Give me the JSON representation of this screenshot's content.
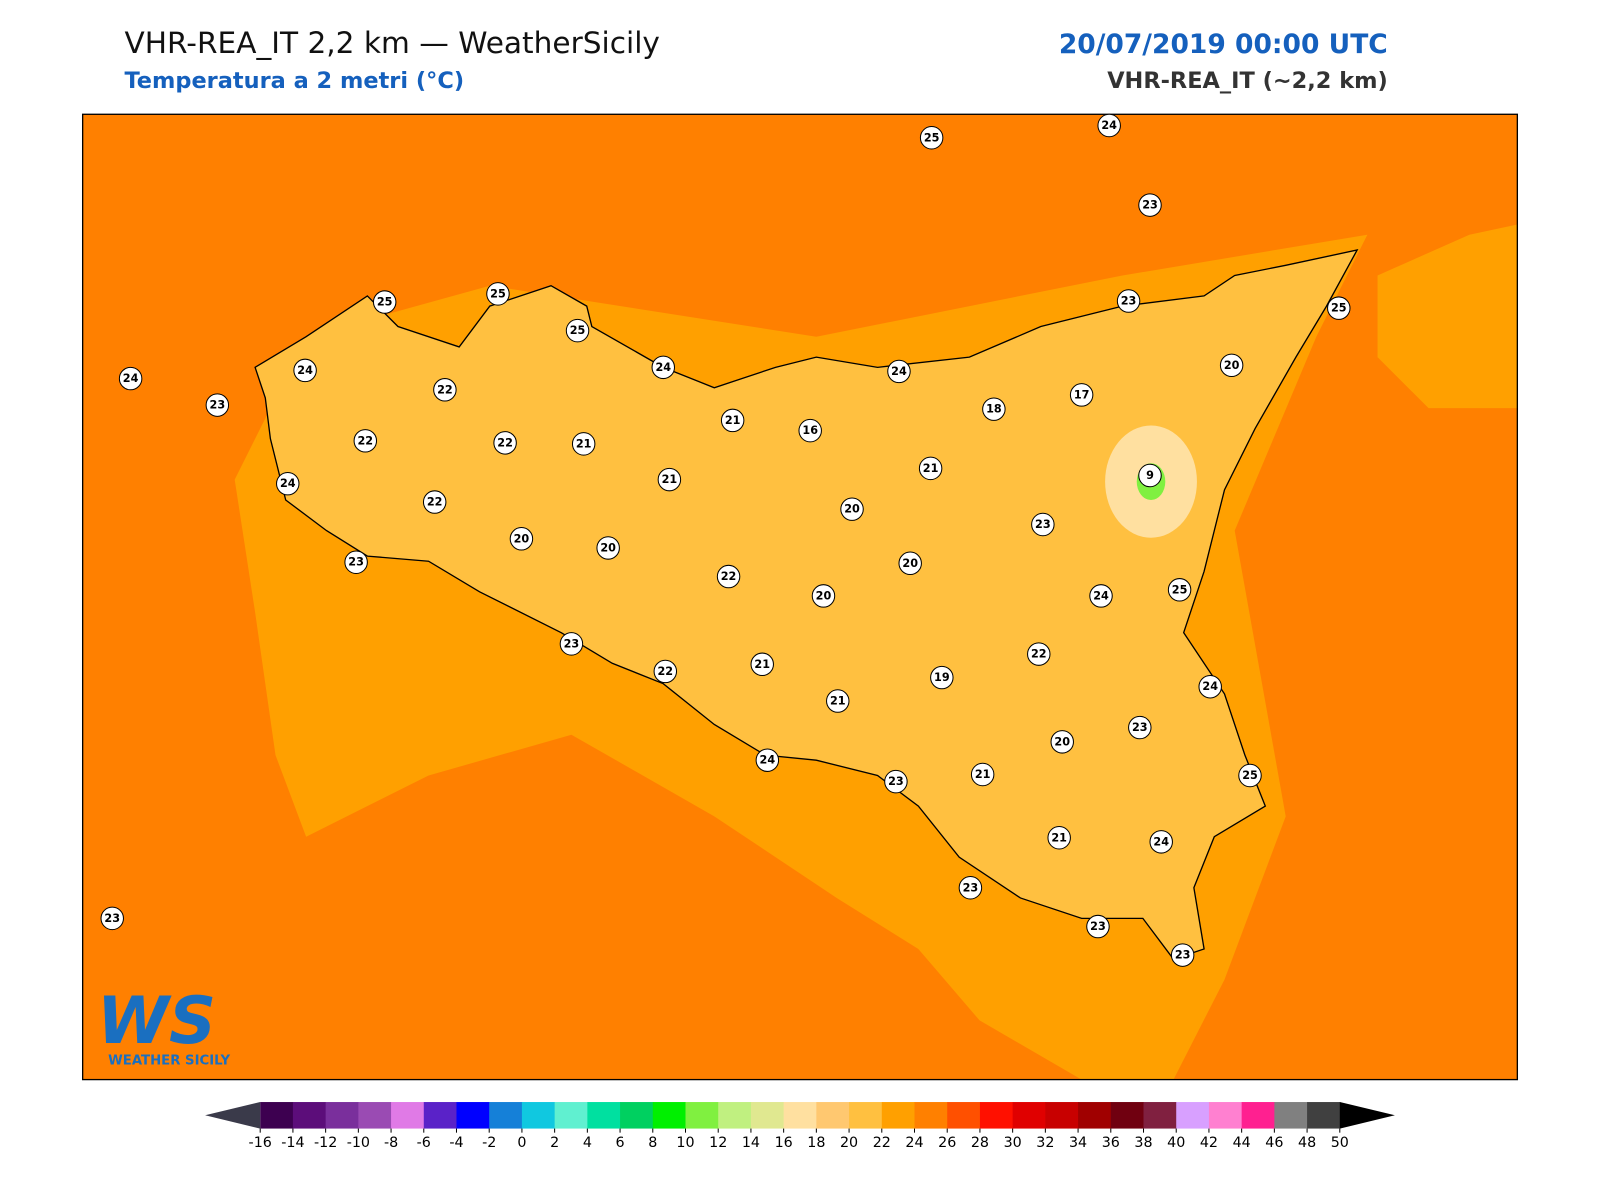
{
  "header": {
    "title": "VHR-REA_IT 2,2 km — WeatherSicily",
    "subtitle": "Temperatura a 2 metri (°C)",
    "date": "20/07/2019 00:00 UTC",
    "model": "VHR-REA_IT (~2,2 km)"
  },
  "logo": {
    "mark": "WS",
    "text": "WEATHER SICILY"
  },
  "stations": [
    25,
    24,
    23,
    25,
    25,
    25,
    23,
    25,
    24,
    23,
    24,
    22,
    24,
    24,
    20,
    17,
    18,
    22,
    22,
    21,
    21,
    16,
    24,
    22,
    21,
    21,
    9,
    20,
    20,
    20,
    23,
    23,
    22,
    20,
    20,
    24,
    25,
    23,
    22,
    21,
    19,
    22,
    24,
    21,
    23,
    20,
    24,
    23,
    21,
    25,
    21,
    24,
    23,
    23,
    23,
    23
  ],
  "colorbar": {
    "ticks": [
      -16,
      -14,
      -12,
      -10,
      -8,
      -6,
      -4,
      -2,
      0,
      2,
      4,
      6,
      8,
      10,
      12,
      14,
      16,
      18,
      20,
      22,
      24,
      26,
      28,
      30,
      32,
      34,
      36,
      38,
      40,
      42,
      44,
      46,
      48,
      50
    ],
    "colors": [
      "#3d0050",
      "#5c0d7a",
      "#7a2f9c",
      "#9a4bb3",
      "#e07ae6",
      "#5a22c8",
      "#0000ff",
      "#1580d8",
      "#10c8e0",
      "#60f0d0",
      "#00e0a0",
      "#00d060",
      "#00f000",
      "#80f040",
      "#c0f080",
      "#e0e890",
      "#ffe0a0",
      "#ffc870",
      "#ffc040",
      "#ffa000",
      "#ff8000",
      "#ff5000",
      "#ff1000",
      "#e00000",
      "#c80000",
      "#a00000",
      "#700010",
      "#802040",
      "#d8a0ff",
      "#ff80d0",
      "#ff2090",
      "#808080",
      "#404040"
    ],
    "extend_low": "#3a3a4a",
    "extend_high": "#000000"
  }
}
